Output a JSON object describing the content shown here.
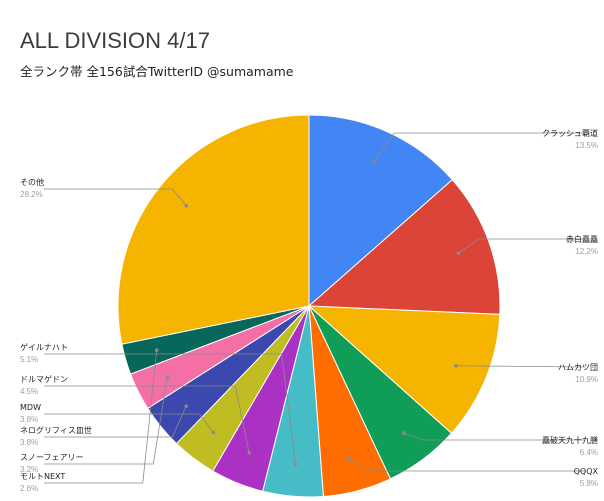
{
  "chart_data": {
    "type": "pie",
    "title": "ALL DIVISION 4/17",
    "subtitle": "全ランク帯 全156試合TwitterID @sumamame",
    "start": "12 o'clock",
    "direction": "clockwise",
    "slices": [
      {
        "name": "クラッシュ覇道",
        "value": 13.5,
        "label": "13.5%",
        "color": "#4285f4",
        "side": "right"
      },
      {
        "name": "赤白矗矗",
        "value": 12.2,
        "label": "12.2%",
        "color": "#db4437",
        "side": "right"
      },
      {
        "name": "ハムカツ団",
        "value": 10.9,
        "label": "10.9%",
        "color": "#f4b400",
        "side": "right"
      },
      {
        "name": "矗破天九十九膳",
        "value": 6.4,
        "label": "6.4%",
        "color": "#0f9d58",
        "side": "right"
      },
      {
        "name": "QQQX",
        "value": 5.8,
        "label": "5.8%",
        "color": "#ff6d00",
        "side": "right"
      },
      {
        "name": "ゲイルナハト",
        "value": 5.1,
        "label": "5.1%",
        "color": "#46bdc6",
        "side": "left"
      },
      {
        "name": "ドルマゲドン",
        "value": 4.5,
        "label": "4.5%",
        "color": "#ab30c4",
        "side": "left"
      },
      {
        "name": "MDW",
        "value": 3.8,
        "label": "3.8%",
        "color": "#c0bd23",
        "side": "left"
      },
      {
        "name": "ネログリフィス皿世",
        "value": 3.8,
        "label": "3.8%",
        "color": "#3b48ad",
        "side": "left"
      },
      {
        "name": "スノーフェアリー",
        "value": 3.2,
        "label": "3.2%",
        "color": "#f46fa6",
        "side": "left"
      },
      {
        "name": "モルトNEXT",
        "value": 2.6,
        "label": "2.6%",
        "color": "#07675a",
        "side": "left"
      },
      {
        "name": "その他",
        "value": 28.2,
        "label": "28.2%",
        "color": "#f4b400",
        "side": "left"
      }
    ]
  }
}
